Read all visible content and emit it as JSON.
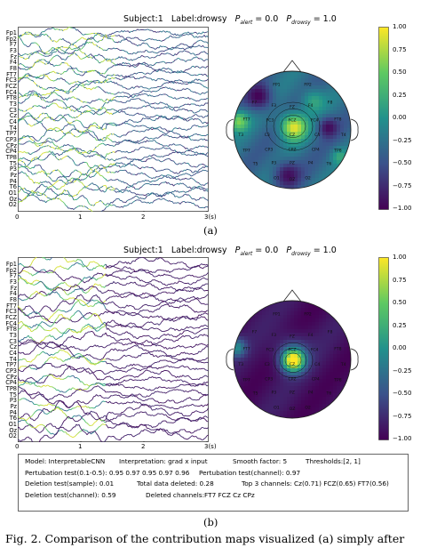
{
  "panel_a": {
    "title": {
      "subject": "Subject:1",
      "label": "Label:drowsy",
      "p_alert_label": "P",
      "p_alert_sub": "alert",
      "p_alert_val": "= 0.0",
      "p_drowsy_label": "P",
      "p_drowsy_sub": "drowsy",
      "p_drowsy_val": "= 1.0"
    },
    "tag": "(a)"
  },
  "panel_b": {
    "title": {
      "subject": "Subject:1",
      "label": "Label:drowsy",
      "p_alert_label": "P",
      "p_alert_sub": "alert",
      "p_alert_val": "= 0.0",
      "p_drowsy_label": "P",
      "p_drowsy_sub": "drowsy",
      "p_drowsy_val": "= 1.0"
    },
    "tag": "(b)"
  },
  "channels": [
    "Fp1",
    "Fp2",
    "F7",
    "F3",
    "Fz",
    "F4",
    "F8",
    "FT7",
    "FC3",
    "FCZ",
    "FC4",
    "FT8",
    "T3",
    "C3",
    "Cz",
    "C4",
    "T4",
    "TP7",
    "CP3",
    "CPz",
    "CP4",
    "TP8",
    "T5",
    "P3",
    "Pz",
    "P4",
    "T6",
    "O1",
    "Oz",
    "O2"
  ],
  "time_ticks": [
    "0",
    "1",
    "2",
    "3(s)"
  ],
  "colorbar_ticks": [
    "1.00",
    "0.75",
    "0.50",
    "0.25",
    "0.00",
    "−0.25",
    "−0.50",
    "−0.75",
    "−1.00"
  ],
  "colormap": [
    "#440154",
    "#3b528b",
    "#21918c",
    "#5ec962",
    "#fde725"
  ],
  "topomap_electrodes_a": [
    "FP1",
    "FP2",
    "F7",
    "F3",
    "FZ",
    "F4",
    "F8",
    "FT7",
    "FC3",
    "FCZ",
    "FC4",
    "FT8",
    "T3",
    "C3",
    "CZ",
    "C4",
    "T4",
    "TP7",
    "CP3",
    "CPZ",
    "CP4",
    "TP8",
    "T5",
    "P3",
    "PZ",
    "P4",
    "T6",
    "O1",
    "OZ",
    "O2"
  ],
  "topomap_electrodes_b": [
    "FP1",
    "FP2",
    "F7",
    "F3",
    "FZ",
    "F4",
    "F8",
    "FT7",
    "FC3",
    "FCZ",
    "FC4",
    "FT8",
    "T3",
    "C3",
    "CZ",
    "C4",
    "T4",
    "TP7",
    "CP3",
    "CPZ",
    "CP4",
    "TP8",
    "T5",
    "P3",
    "PZ",
    "P4",
    "T6",
    "O1",
    "OZ",
    "O2"
  ],
  "info": {
    "model": "Model: InterpretableCNN",
    "interpretation": "Interpretation: grad x input",
    "smooth": "Smooth factor: 5",
    "thresholds": "Thresholds:[2, 1]",
    "pert_test": "Pertubation test(0.1-0.5): 0.95 0.97 0.95 0.97 0.96",
    "pert_channel": "Pertubation test(channel): 0.97",
    "del_sample": "Deletion test(sample): 0.01",
    "total_deleted": "Total data deleted: 0.28",
    "top3": "Top 3 channels: Cz(0.71) FCZ(0.65) FT7(0.56)",
    "del_channel": "Deletion test(channel): 0.59",
    "deleted_channels": "Deleted channels:FT7 FCZ Cz CPz"
  },
  "figure_caption": "Fig. 2.   Comparison of the contribution maps visualized (a) simply after"
}
